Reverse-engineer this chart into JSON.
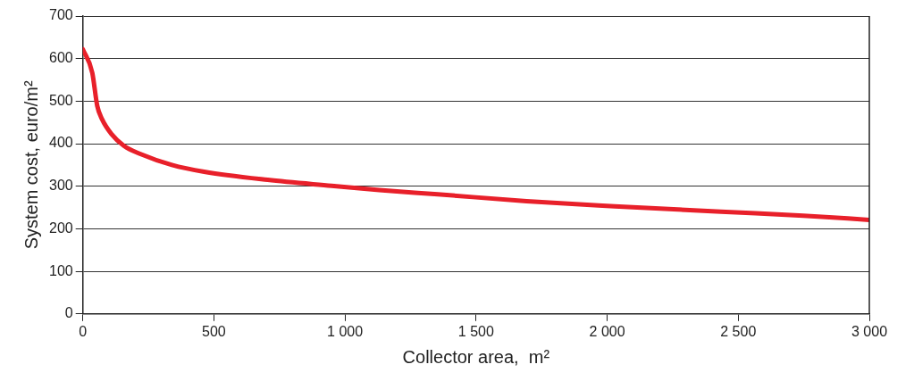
{
  "chart_data": {
    "type": "line",
    "xlabel": "Collector area,  m²",
    "ylabel": "System cost, euro/m²",
    "xlim": [
      0,
      3000
    ],
    "xticks": [
      0,
      500,
      {
        "value": 1000,
        "label": "1 000"
      },
      {
        "value": 1500,
        "label": "1 500"
      },
      {
        "value": 2000,
        "label": "2 000"
      },
      {
        "value": 2500,
        "label": "2 500"
      },
      {
        "value": 3000,
        "label": "3 000"
      }
    ],
    "ylim": [
      0,
      700
    ],
    "yticks": [
      0,
      100,
      200,
      300,
      400,
      500,
      600,
      700
    ],
    "grid": "y",
    "legend": false,
    "marker": "none",
    "line_style": "solid",
    "series": [
      {
        "color": "#e8202a",
        "x": [
          0,
          36,
          55,
          73,
          109,
          157,
          219,
          340,
          463,
          705,
          949,
          1131,
          1354,
          1693,
          2029,
          2434,
          2748,
          3000
        ],
        "values": [
          622,
          567,
          489,
          458,
          423,
          395,
          376,
          350,
          334,
          315,
          301,
          291,
          281,
          265,
          253,
          240,
          231,
          221
        ]
      }
    ]
  }
}
